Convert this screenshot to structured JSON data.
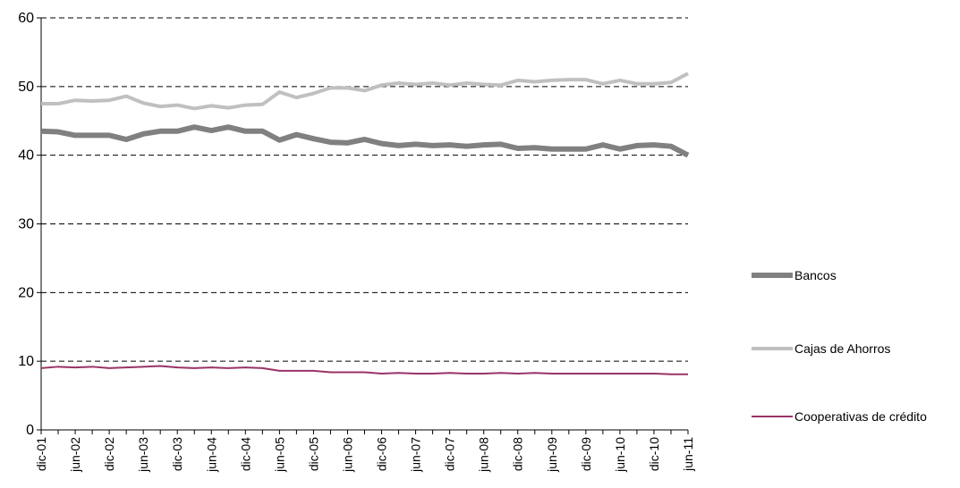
{
  "chart_data": {
    "type": "line",
    "categories": [
      "dic-01",
      null,
      "jun-02",
      null,
      "dic-02",
      null,
      "jun-03",
      null,
      "dic-03",
      null,
      "jun-04",
      null,
      "dic-04",
      null,
      "jun-05",
      null,
      "dic-05",
      null,
      "jun-06",
      null,
      "dic-06",
      null,
      "jun-07",
      null,
      "dic-07",
      null,
      "jun-08",
      null,
      "dic-08",
      null,
      "jun-09",
      null,
      "dic-09",
      null,
      "jun-10",
      null,
      "dic-10",
      null,
      "jun-11"
    ],
    "series": [
      {
        "name": "Bancos",
        "color": "#808080",
        "width": 6,
        "values": [
          43.5,
          43.4,
          42.9,
          42.9,
          42.9,
          42.3,
          43.1,
          43.5,
          43.5,
          44.1,
          43.6,
          44.1,
          43.5,
          43.5,
          42.2,
          43.0,
          42.4,
          41.9,
          41.8,
          42.3,
          41.7,
          41.4,
          41.6,
          41.4,
          41.5,
          41.3,
          41.5,
          41.6,
          41.0,
          41.1,
          40.9,
          40.9,
          40.9,
          41.5,
          40.9,
          41.4,
          41.5,
          41.3,
          40.0
        ]
      },
      {
        "name": "Cajas de Ahorros",
        "color": "#c0c0c0",
        "width": 4,
        "values": [
          47.5,
          47.5,
          48.0,
          47.9,
          48.0,
          48.6,
          47.6,
          47.1,
          47.3,
          46.8,
          47.2,
          46.9,
          47.3,
          47.4,
          49.2,
          48.4,
          49.0,
          49.8,
          49.8,
          49.4,
          50.2,
          50.5,
          50.3,
          50.5,
          50.2,
          50.5,
          50.3,
          50.2,
          50.9,
          50.7,
          50.9,
          51.0,
          51.0,
          50.4,
          50.9,
          50.4,
          50.4,
          50.6,
          51.9
        ]
      },
      {
        "name": "Cooperativas de crédito",
        "color": "#993366",
        "width": 2,
        "values": [
          9.0,
          9.2,
          9.1,
          9.2,
          9.0,
          9.1,
          9.2,
          9.3,
          9.1,
          9.0,
          9.1,
          9.0,
          9.1,
          9.0,
          8.6,
          8.6,
          8.6,
          8.4,
          8.4,
          8.4,
          8.2,
          8.3,
          8.2,
          8.2,
          8.3,
          8.2,
          8.2,
          8.3,
          8.2,
          8.3,
          8.2,
          8.2,
          8.2,
          8.2,
          8.2,
          8.2,
          8.2,
          8.1,
          8.1
        ]
      }
    ],
    "ylim": [
      0,
      60
    ],
    "yticks": [
      0,
      10,
      20,
      30,
      40,
      50,
      60
    ],
    "grid": true,
    "legend": "right"
  }
}
